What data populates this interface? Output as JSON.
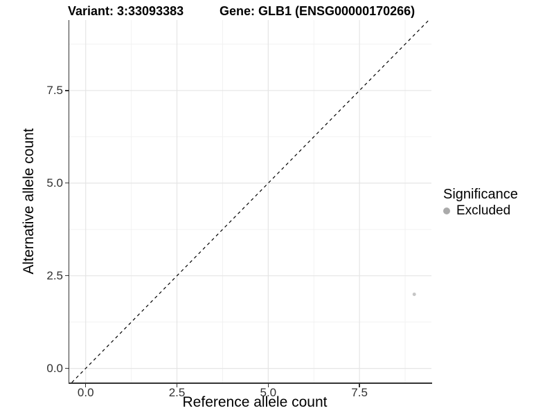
{
  "header": {
    "variant_title": "Variant: 3:33093383",
    "gene_title": "Gene: GLB1 (ENSG00000170266)"
  },
  "chart_data": {
    "type": "scatter",
    "xlabel": "Reference allele count",
    "ylabel": "Alternative allele count",
    "xlim": [
      -0.45,
      9.47
    ],
    "ylim": [
      -0.38,
      9.4
    ],
    "x_ticks": [
      0,
      2.5,
      5,
      7.5
    ],
    "y_ticks": [
      0,
      2.5,
      5,
      7.5
    ],
    "x_tick_labels": [
      "0.0",
      "2.5",
      "5.0",
      "7.5"
    ],
    "y_tick_labels": [
      "0.0",
      "2.5",
      "5.0",
      "7.5"
    ],
    "minor_gridlines": [
      1.25,
      3.75,
      6.25,
      8.75
    ],
    "grid": {
      "major": true,
      "minor": true
    },
    "identity_line": {
      "style": "dashed",
      "color": "#000000",
      "equation": "y = x"
    },
    "series": [
      {
        "name": "Excluded",
        "color": "#c6c6c6",
        "marker_radius": 2.5,
        "points": [
          {
            "x": 9,
            "y": 2
          }
        ]
      }
    ],
    "legend": {
      "title": "Significance",
      "position": "right",
      "items": [
        {
          "label": "Excluded",
          "marker_color": "#aaaaaa"
        }
      ]
    },
    "colors": {
      "grid_major": "#e5e5e5",
      "grid_minor": "#f2f2f2",
      "axis_line": "#333333",
      "tick_label": "#303030",
      "background": "#ffffff"
    }
  }
}
